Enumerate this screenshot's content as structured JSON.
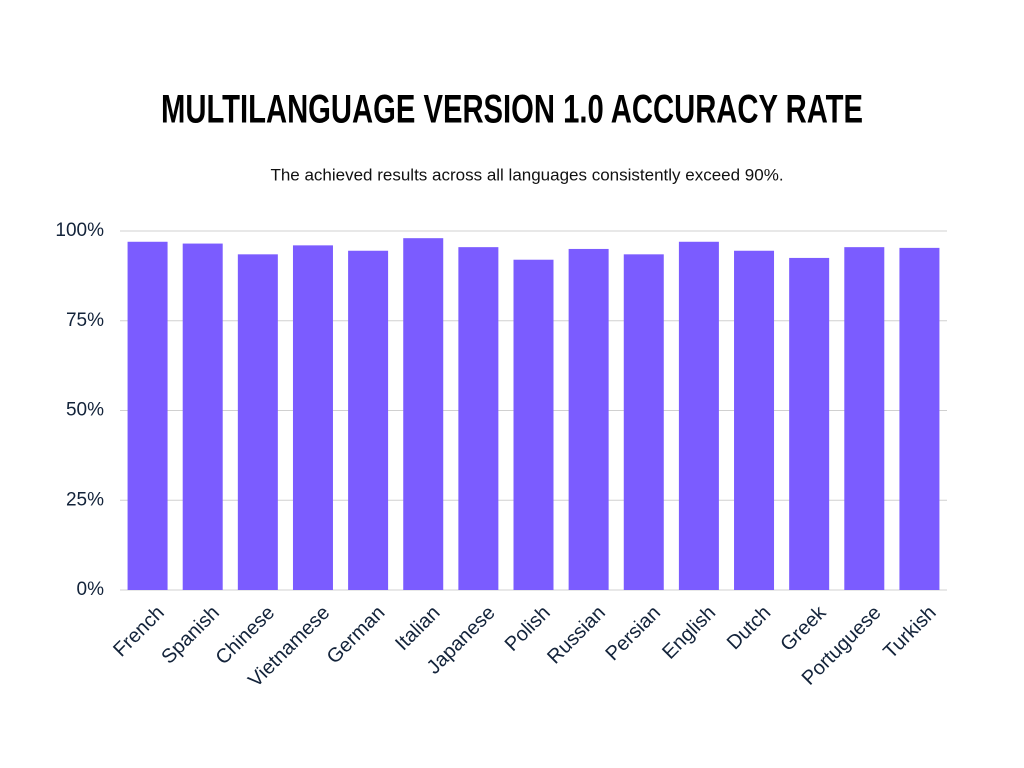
{
  "chart_data": {
    "type": "bar",
    "title": "MULTILANGUAGE VERSION 1.0 ACCURACY RATE",
    "subtitle": "The achieved results across all languages consistently exceed 90%.",
    "categories": [
      "French",
      "Spanish",
      "Chinese",
      "Vietnamese",
      "German",
      "Italian",
      "Japanese",
      "Polish",
      "Russian",
      "Persian",
      "English",
      "Dutch",
      "Greek",
      "Portuguese",
      "Turkish"
    ],
    "values": [
      97,
      96.5,
      93.5,
      96,
      94.5,
      98,
      95.5,
      92,
      95,
      93.5,
      97,
      94.5,
      92.5,
      95.5,
      95.3
    ],
    "color": "#7b5cff",
    "ylim": [
      0,
      100
    ],
    "yticks": [
      {
        "value": 0,
        "label": "0%"
      },
      {
        "value": 25,
        "label": "25%"
      },
      {
        "value": 50,
        "label": "50%"
      },
      {
        "value": 75,
        "label": "75%"
      },
      {
        "value": 100,
        "label": "100%"
      }
    ],
    "grid": true
  }
}
